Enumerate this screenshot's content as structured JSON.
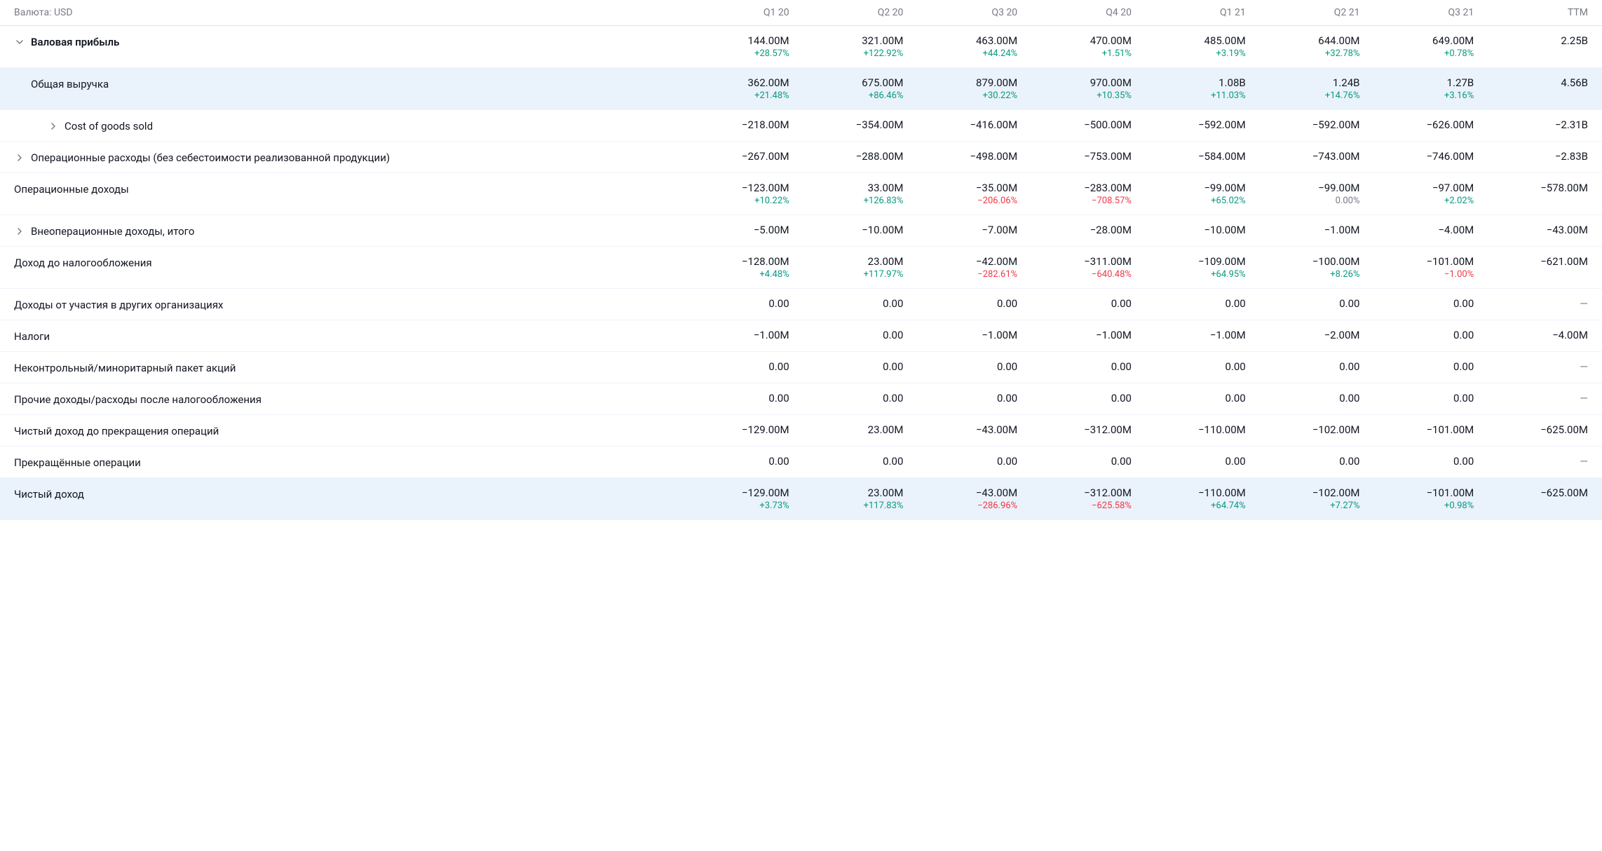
{
  "header": {
    "currency_label": "Валюта: USD",
    "columns": [
      "Q1 20",
      "Q2 20",
      "Q3 20",
      "Q4 20",
      "Q1 21",
      "Q2 21",
      "Q3 21",
      "TTM"
    ]
  },
  "rows": [
    {
      "label": "Валовая прибыль",
      "bold": true,
      "highlighted": false,
      "indent": 0,
      "expand": "down",
      "data": [
        {
          "v": "144.00M",
          "p": "+28.57%",
          "s": "positive"
        },
        {
          "v": "321.00M",
          "p": "+122.92%",
          "s": "positive"
        },
        {
          "v": "463.00M",
          "p": "+44.24%",
          "s": "positive"
        },
        {
          "v": "470.00M",
          "p": "+1.51%",
          "s": "positive"
        },
        {
          "v": "485.00M",
          "p": "+3.19%",
          "s": "positive"
        },
        {
          "v": "644.00M",
          "p": "+32.78%",
          "s": "positive"
        },
        {
          "v": "649.00M",
          "p": "+0.78%",
          "s": "positive"
        },
        {
          "v": "2.25B"
        }
      ]
    },
    {
      "label": "Общая выручка",
      "bold": false,
      "highlighted": true,
      "indent": 1,
      "expand": null,
      "data": [
        {
          "v": "362.00M",
          "p": "+21.48%",
          "s": "positive"
        },
        {
          "v": "675.00M",
          "p": "+86.46%",
          "s": "positive"
        },
        {
          "v": "879.00M",
          "p": "+30.22%",
          "s": "positive"
        },
        {
          "v": "970.00M",
          "p": "+10.35%",
          "s": "positive"
        },
        {
          "v": "1.08B",
          "p": "+11.03%",
          "s": "positive"
        },
        {
          "v": "1.24B",
          "p": "+14.76%",
          "s": "positive"
        },
        {
          "v": "1.27B",
          "p": "+3.16%",
          "s": "positive"
        },
        {
          "v": "4.56B"
        }
      ]
    },
    {
      "label": "Cost of goods sold",
      "bold": false,
      "highlighted": false,
      "indent": 2,
      "expand": "right",
      "data": [
        {
          "v": "−218.00M"
        },
        {
          "v": "−354.00M"
        },
        {
          "v": "−416.00M"
        },
        {
          "v": "−500.00M"
        },
        {
          "v": "−592.00M"
        },
        {
          "v": "−592.00M"
        },
        {
          "v": "−626.00M"
        },
        {
          "v": "−2.31B"
        }
      ]
    },
    {
      "label": "Операционные расходы (без себестоимости реализованной продукции)",
      "bold": false,
      "highlighted": false,
      "indent": 0,
      "expand": "right",
      "data": [
        {
          "v": "−267.00M"
        },
        {
          "v": "−288.00M"
        },
        {
          "v": "−498.00M"
        },
        {
          "v": "−753.00M"
        },
        {
          "v": "−584.00M"
        },
        {
          "v": "−743.00M"
        },
        {
          "v": "−746.00M"
        },
        {
          "v": "−2.83B"
        }
      ]
    },
    {
      "label": "Операционные доходы",
      "bold": false,
      "highlighted": false,
      "indent": 0,
      "expand": null,
      "data": [
        {
          "v": "−123.00M",
          "p": "+10.22%",
          "s": "positive"
        },
        {
          "v": "33.00M",
          "p": "+126.83%",
          "s": "positive"
        },
        {
          "v": "−35.00M",
          "p": "−206.06%",
          "s": "negative"
        },
        {
          "v": "−283.00M",
          "p": "−708.57%",
          "s": "negative"
        },
        {
          "v": "−99.00M",
          "p": "+65.02%",
          "s": "positive"
        },
        {
          "v": "−99.00M",
          "p": "0.00%",
          "s": "neutral"
        },
        {
          "v": "−97.00M",
          "p": "+2.02%",
          "s": "positive"
        },
        {
          "v": "−578.00M"
        }
      ]
    },
    {
      "label": "Внеоперационные доходы, итого",
      "bold": false,
      "highlighted": false,
      "indent": 0,
      "expand": "right",
      "data": [
        {
          "v": "−5.00M"
        },
        {
          "v": "−10.00M"
        },
        {
          "v": "−7.00M"
        },
        {
          "v": "−28.00M"
        },
        {
          "v": "−10.00M"
        },
        {
          "v": "−1.00M"
        },
        {
          "v": "−4.00M"
        },
        {
          "v": "−43.00M"
        }
      ]
    },
    {
      "label": "Доход до налогообложения",
      "bold": false,
      "highlighted": false,
      "indent": 0,
      "expand": null,
      "data": [
        {
          "v": "−128.00M",
          "p": "+4.48%",
          "s": "positive"
        },
        {
          "v": "23.00M",
          "p": "+117.97%",
          "s": "positive"
        },
        {
          "v": "−42.00M",
          "p": "−282.61%",
          "s": "negative"
        },
        {
          "v": "−311.00M",
          "p": "−640.48%",
          "s": "negative"
        },
        {
          "v": "−109.00M",
          "p": "+64.95%",
          "s": "positive"
        },
        {
          "v": "−100.00M",
          "p": "+8.26%",
          "s": "positive"
        },
        {
          "v": "−101.00M",
          "p": "−1.00%",
          "s": "negative"
        },
        {
          "v": "−621.00M"
        }
      ]
    },
    {
      "label": "Доходы от участия в других организациях",
      "bold": false,
      "highlighted": false,
      "indent": 0,
      "expand": null,
      "data": [
        {
          "v": "0.00"
        },
        {
          "v": "0.00"
        },
        {
          "v": "0.00"
        },
        {
          "v": "0.00"
        },
        {
          "v": "0.00"
        },
        {
          "v": "0.00"
        },
        {
          "v": "0.00"
        },
        {
          "v": "—",
          "dash": true
        }
      ]
    },
    {
      "label": "Налоги",
      "bold": false,
      "highlighted": false,
      "indent": 0,
      "expand": null,
      "data": [
        {
          "v": "−1.00M"
        },
        {
          "v": "0.00"
        },
        {
          "v": "−1.00M"
        },
        {
          "v": "−1.00M"
        },
        {
          "v": "−1.00M"
        },
        {
          "v": "−2.00M"
        },
        {
          "v": "0.00"
        },
        {
          "v": "−4.00M"
        }
      ]
    },
    {
      "label": "Неконтрольный/миноритарный пакет акций",
      "bold": false,
      "highlighted": false,
      "indent": 0,
      "expand": null,
      "data": [
        {
          "v": "0.00"
        },
        {
          "v": "0.00"
        },
        {
          "v": "0.00"
        },
        {
          "v": "0.00"
        },
        {
          "v": "0.00"
        },
        {
          "v": "0.00"
        },
        {
          "v": "0.00"
        },
        {
          "v": "—",
          "dash": true
        }
      ]
    },
    {
      "label": "Прочие доходы/расходы после налогообложения",
      "bold": false,
      "highlighted": false,
      "indent": 0,
      "expand": null,
      "data": [
        {
          "v": "0.00"
        },
        {
          "v": "0.00"
        },
        {
          "v": "0.00"
        },
        {
          "v": "0.00"
        },
        {
          "v": "0.00"
        },
        {
          "v": "0.00"
        },
        {
          "v": "0.00"
        },
        {
          "v": "—",
          "dash": true
        }
      ]
    },
    {
      "label": "Чистый доход до прекращения операций",
      "bold": false,
      "highlighted": false,
      "indent": 0,
      "expand": null,
      "data": [
        {
          "v": "−129.00M"
        },
        {
          "v": "23.00M"
        },
        {
          "v": "−43.00M"
        },
        {
          "v": "−312.00M"
        },
        {
          "v": "−110.00M"
        },
        {
          "v": "−102.00M"
        },
        {
          "v": "−101.00M"
        },
        {
          "v": "−625.00M"
        }
      ]
    },
    {
      "label": "Прекращённые операции",
      "bold": false,
      "highlighted": false,
      "indent": 0,
      "expand": null,
      "data": [
        {
          "v": "0.00"
        },
        {
          "v": "0.00"
        },
        {
          "v": "0.00"
        },
        {
          "v": "0.00"
        },
        {
          "v": "0.00"
        },
        {
          "v": "0.00"
        },
        {
          "v": "0.00"
        },
        {
          "v": "—",
          "dash": true
        }
      ]
    },
    {
      "label": "Чистый доход",
      "bold": false,
      "highlighted": true,
      "indent": 0,
      "expand": null,
      "data": [
        {
          "v": "−129.00M",
          "p": "+3.73%",
          "s": "positive"
        },
        {
          "v": "23.00M",
          "p": "+117.83%",
          "s": "positive"
        },
        {
          "v": "−43.00M",
          "p": "−286.96%",
          "s": "negative"
        },
        {
          "v": "−312.00M",
          "p": "−625.58%",
          "s": "negative"
        },
        {
          "v": "−110.00M",
          "p": "+64.74%",
          "s": "positive"
        },
        {
          "v": "−102.00M",
          "p": "+7.27%",
          "s": "positive"
        },
        {
          "v": "−101.00M",
          "p": "+0.98%",
          "s": "positive"
        },
        {
          "v": "−625.00M"
        }
      ]
    }
  ]
}
